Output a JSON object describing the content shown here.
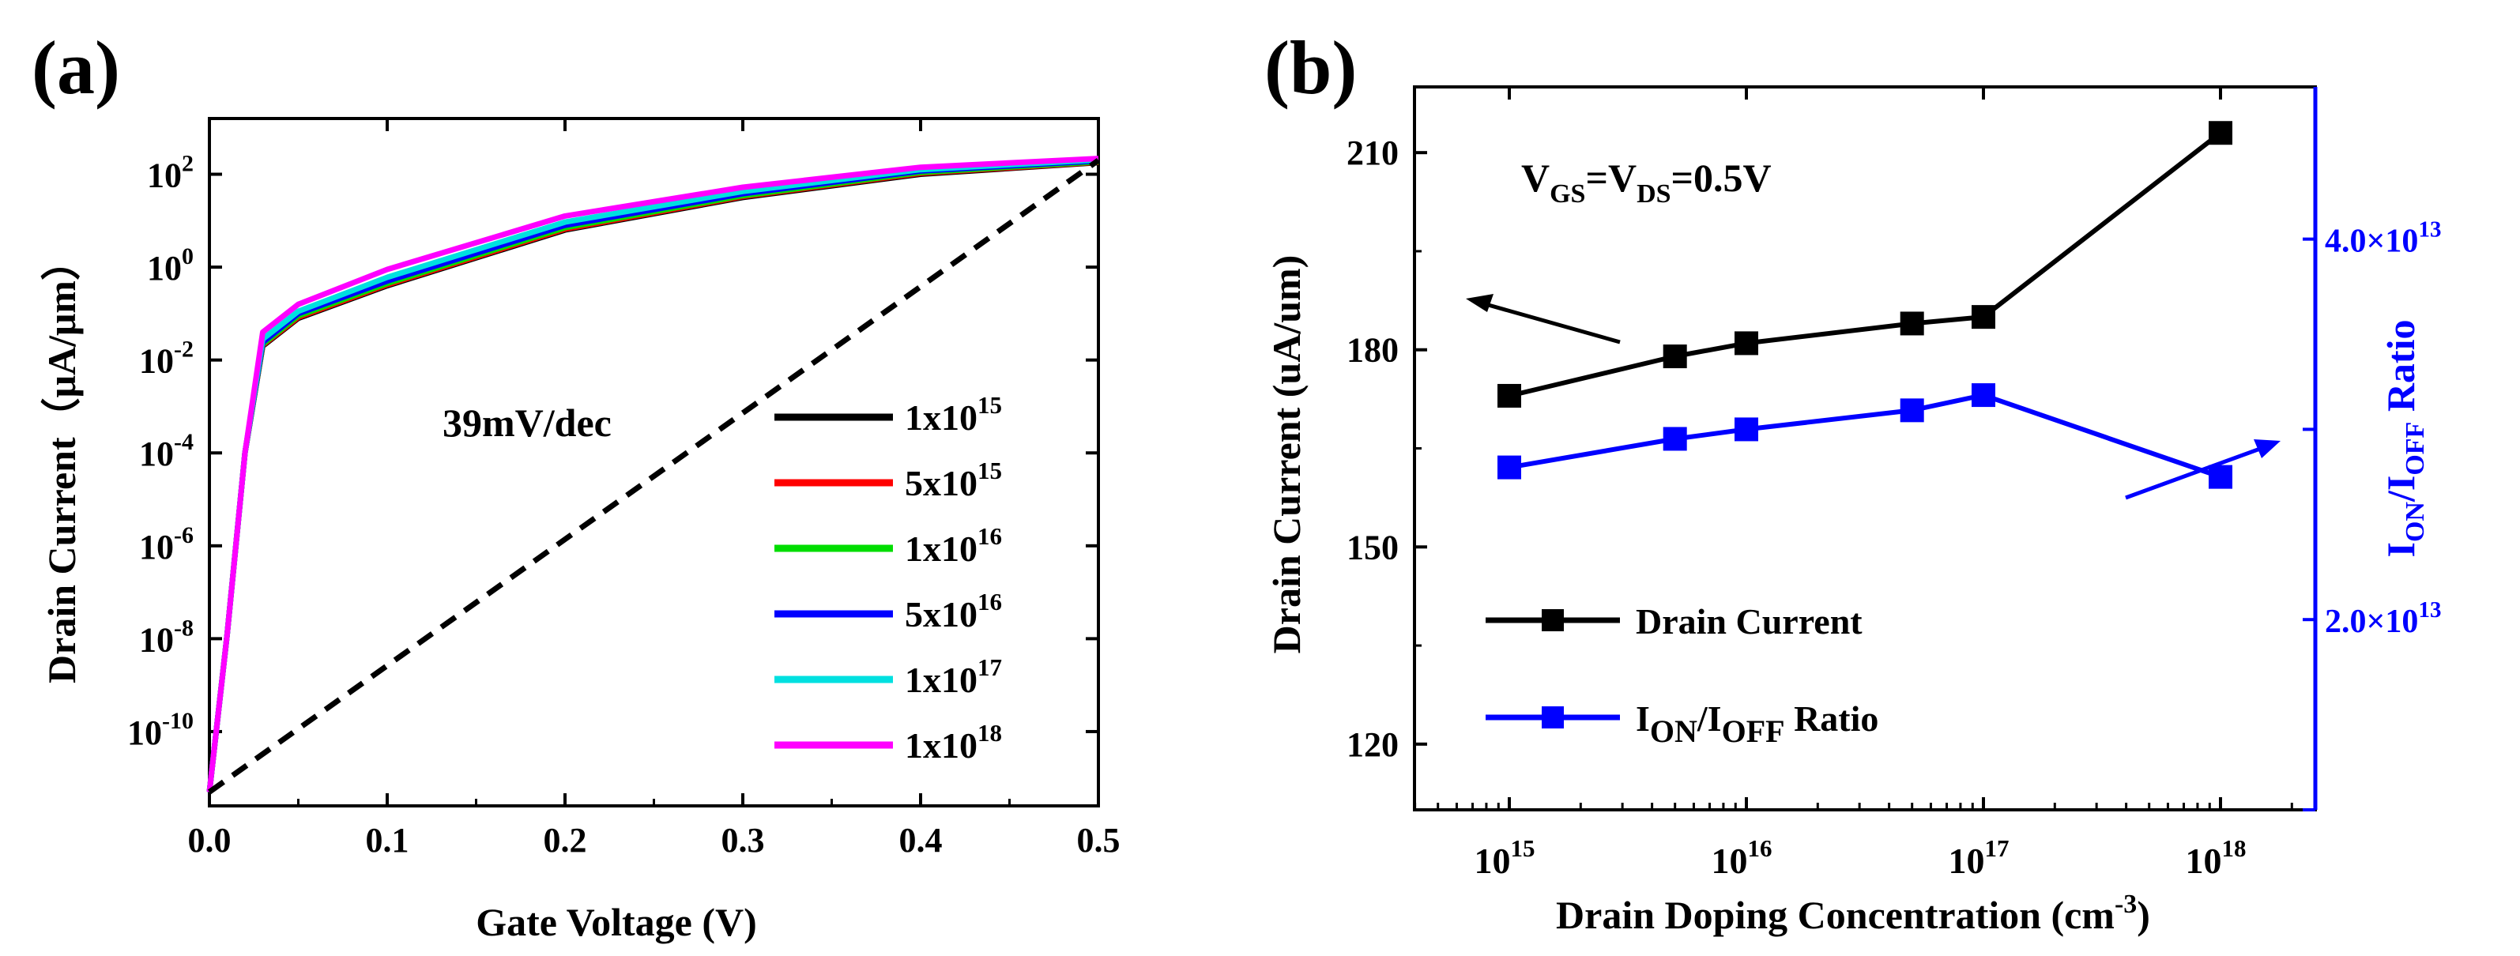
{
  "chart_data": [
    {
      "panel_label": "(a)",
      "type": "line",
      "xlabel": "Gate Voltage (V)",
      "ylabel": "Drain Current（μA/μm）",
      "xlim": [
        0,
        0.5
      ],
      "ylim_log10": [
        -11.6,
        3.2
      ],
      "yscale": "log",
      "xticks": [
        "0.0",
        "0.1",
        "0.2",
        "0.3",
        "0.4",
        "0.5"
      ],
      "xtick_values": [
        0,
        0.1,
        0.2,
        0.3,
        0.4,
        0.5
      ],
      "yticks": [
        {
          "base": "10",
          "exp": "2",
          "log": 2
        },
        {
          "base": "10",
          "exp": "0",
          "log": 0
        },
        {
          "base": "10",
          "exp": "-2",
          "log": -2
        },
        {
          "base": "10",
          "exp": "-4",
          "log": -4
        },
        {
          "base": "10",
          "exp": "-6",
          "log": -6
        },
        {
          "base": "10",
          "exp": "-8",
          "log": -8
        },
        {
          "base": "10",
          "exp": "-10",
          "log": -10
        }
      ],
      "annotation": "39mV/dec",
      "subthreshold_line": {
        "x": [
          0.0,
          0.5
        ],
        "log10_y": [
          -11.3,
          2.3
        ]
      },
      "series": [
        {
          "name": "1x10",
          "exp": "15",
          "color": "#000000",
          "x": [
            0.0,
            0.01,
            0.02,
            0.03,
            0.05,
            0.1,
            0.2,
            0.3,
            0.4,
            0.5
          ],
          "log10_y": [
            -11.3,
            -7.9,
            -4.0,
            -1.7,
            -1.1,
            -0.4,
            0.8,
            1.5,
            2.0,
            2.25
          ]
        },
        {
          "name": "5x10",
          "exp": "15",
          "color": "#ff0000",
          "x": [
            0.0,
            0.01,
            0.02,
            0.03,
            0.05,
            0.1,
            0.2,
            0.3,
            0.4,
            0.5
          ],
          "log10_y": [
            -11.3,
            -7.9,
            -4.0,
            -1.68,
            -1.08,
            -0.38,
            0.82,
            1.52,
            2.02,
            2.26
          ]
        },
        {
          "name": "1x10",
          "exp": "16",
          "color": "#00dd00",
          "x": [
            0.0,
            0.01,
            0.02,
            0.03,
            0.05,
            0.1,
            0.2,
            0.3,
            0.4,
            0.5
          ],
          "log10_y": [
            -11.3,
            -7.9,
            -4.0,
            -1.66,
            -1.05,
            -0.35,
            0.85,
            1.54,
            2.04,
            2.27
          ]
        },
        {
          "name": "5x10",
          "exp": "16",
          "color": "#0000ff",
          "x": [
            0.0,
            0.01,
            0.02,
            0.03,
            0.05,
            0.1,
            0.2,
            0.3,
            0.4,
            0.5
          ],
          "log10_y": [
            -11.3,
            -7.9,
            -4.0,
            -1.62,
            -1.0,
            -0.3,
            0.9,
            1.58,
            2.07,
            2.29
          ]
        },
        {
          "name": "1x10",
          "exp": "17",
          "color": "#00e0e0",
          "x": [
            0.0,
            0.01,
            0.02,
            0.03,
            0.05,
            0.1,
            0.2,
            0.3,
            0.4,
            0.5
          ],
          "log10_y": [
            -11.3,
            -7.9,
            -4.0,
            -1.55,
            -0.95,
            -0.22,
            0.97,
            1.63,
            2.1,
            2.31
          ]
        },
        {
          "name": "1x10",
          "exp": "18",
          "color": "#ff00ff",
          "x": [
            0.0,
            0.01,
            0.02,
            0.03,
            0.05,
            0.1,
            0.2,
            0.3,
            0.4,
            0.5
          ],
          "log10_y": [
            -11.3,
            -7.9,
            -4.0,
            -1.4,
            -0.8,
            -0.05,
            1.1,
            1.72,
            2.15,
            2.34
          ]
        }
      ],
      "legend_position": "lower-right"
    },
    {
      "panel_label": "(b)",
      "type": "line",
      "xlabel": "Drain Doping Concentration (cm",
      "xlabel_sup": "-3",
      "xlabel_end": ")",
      "ylabel": "Drain Current (uA/um)",
      "ylabel2_parts": [
        "I",
        "ON",
        "/I",
        "OFF",
        " Ratio"
      ],
      "xscale": "log",
      "xlim_log10": [
        14.6,
        18.4
      ],
      "xticks": [
        {
          "base": "10",
          "exp": "15",
          "log": 15
        },
        {
          "base": "10",
          "exp": "16",
          "log": 16
        },
        {
          "base": "10",
          "exp": "17",
          "log": 17
        },
        {
          "base": "10",
          "exp": "18",
          "log": 18
        }
      ],
      "ylim": [
        110,
        220
      ],
      "yticks": [
        "120",
        "150",
        "180",
        "210"
      ],
      "ytick_values": [
        120,
        150,
        180,
        210
      ],
      "y2lim": [
        10000000000000.0,
        48000000000000.0
      ],
      "y2ticks": [
        {
          "mant": "2.0×10",
          "exp": "13",
          "value": 20000000000000.0
        },
        {
          "mant": "4.0×10",
          "exp": "13",
          "value": 40000000000000.0
        }
      ],
      "annotation_parts": [
        "V",
        "GS",
        "=V",
        "DS",
        "=0.5V"
      ],
      "series": [
        {
          "name": "Drain Current",
          "color": "#000000",
          "axis": "left",
          "x": [
            1000000000000000.0,
            5000000000000000.0,
            1e+16,
            5e+16,
            1e+17,
            1e+18
          ],
          "values": [
            173,
            179,
            181,
            184,
            185,
            213
          ]
        },
        {
          "name_parts": [
            "I",
            "ON",
            "/I",
            "OFF",
            " Ratio"
          ],
          "color": "#0000ff",
          "axis": "right",
          "x": [
            1000000000000000.0,
            5000000000000000.0,
            1e+16,
            5e+16,
            1e+17,
            1e+18
          ],
          "values": [
            28000000000000.0,
            29500000000000.0,
            30000000000000.0,
            31000000000000.0,
            31800000000000.0,
            27500000000000.0
          ]
        }
      ],
      "legend_labels": [
        "Drain Current",
        "I",
        "ON",
        "/I",
        "OFF",
        " Ratio"
      ],
      "legend_position": "lower-left"
    }
  ]
}
